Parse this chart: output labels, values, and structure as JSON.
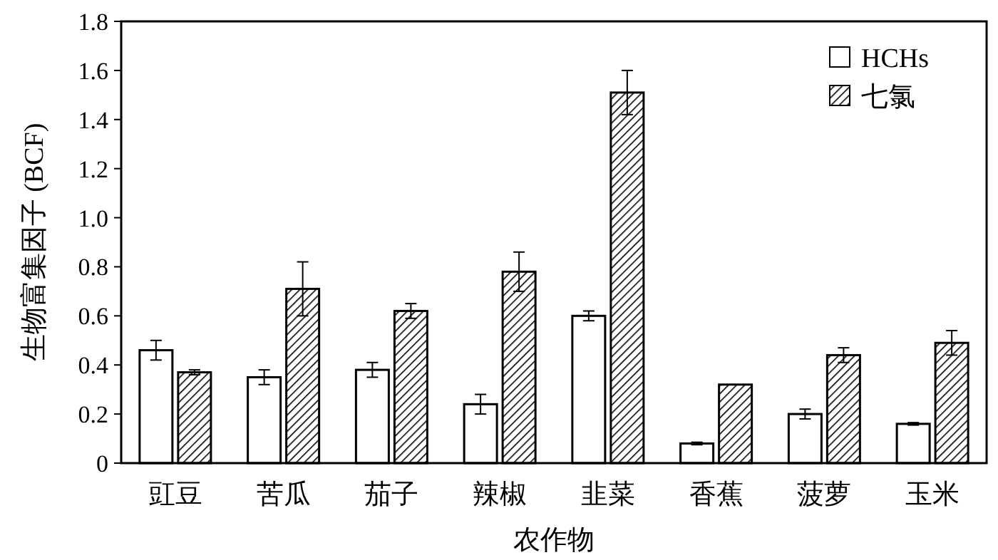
{
  "chart_data": {
    "type": "bar",
    "xlabel": "农作物",
    "ylabel": "生物富集因子 (BCF)",
    "categories": [
      "豇豆",
      "苦瓜",
      "茄子",
      "辣椒",
      "韭菜",
      "香蕉",
      "菠萝",
      "玉米"
    ],
    "series": [
      {
        "name": "HCHs",
        "color": "#ffffff",
        "values": [
          0.46,
          0.35,
          0.38,
          0.24,
          0.6,
          0.08,
          0.2,
          0.16
        ],
        "errors": [
          0.04,
          0.03,
          0.03,
          0.04,
          0.02,
          0.005,
          0.02,
          0.005
        ]
      },
      {
        "name": "七氯",
        "color": "#000000",
        "values": [
          0.37,
          0.71,
          0.62,
          0.78,
          1.51,
          0.32,
          0.44,
          0.49
        ],
        "errors": [
          0.01,
          0.11,
          0.03,
          0.08,
          0.09,
          null,
          0.03,
          0.05
        ]
      }
    ],
    "ylim": [
      0,
      1.8
    ],
    "yticks": [
      0,
      0.2,
      0.4,
      0.6,
      0.8,
      {
        "value": 1,
        "label": "1.0"
      },
      1.2,
      1.4,
      1.6,
      1.8
    ],
    "legend": "top right",
    "grid": false
  }
}
